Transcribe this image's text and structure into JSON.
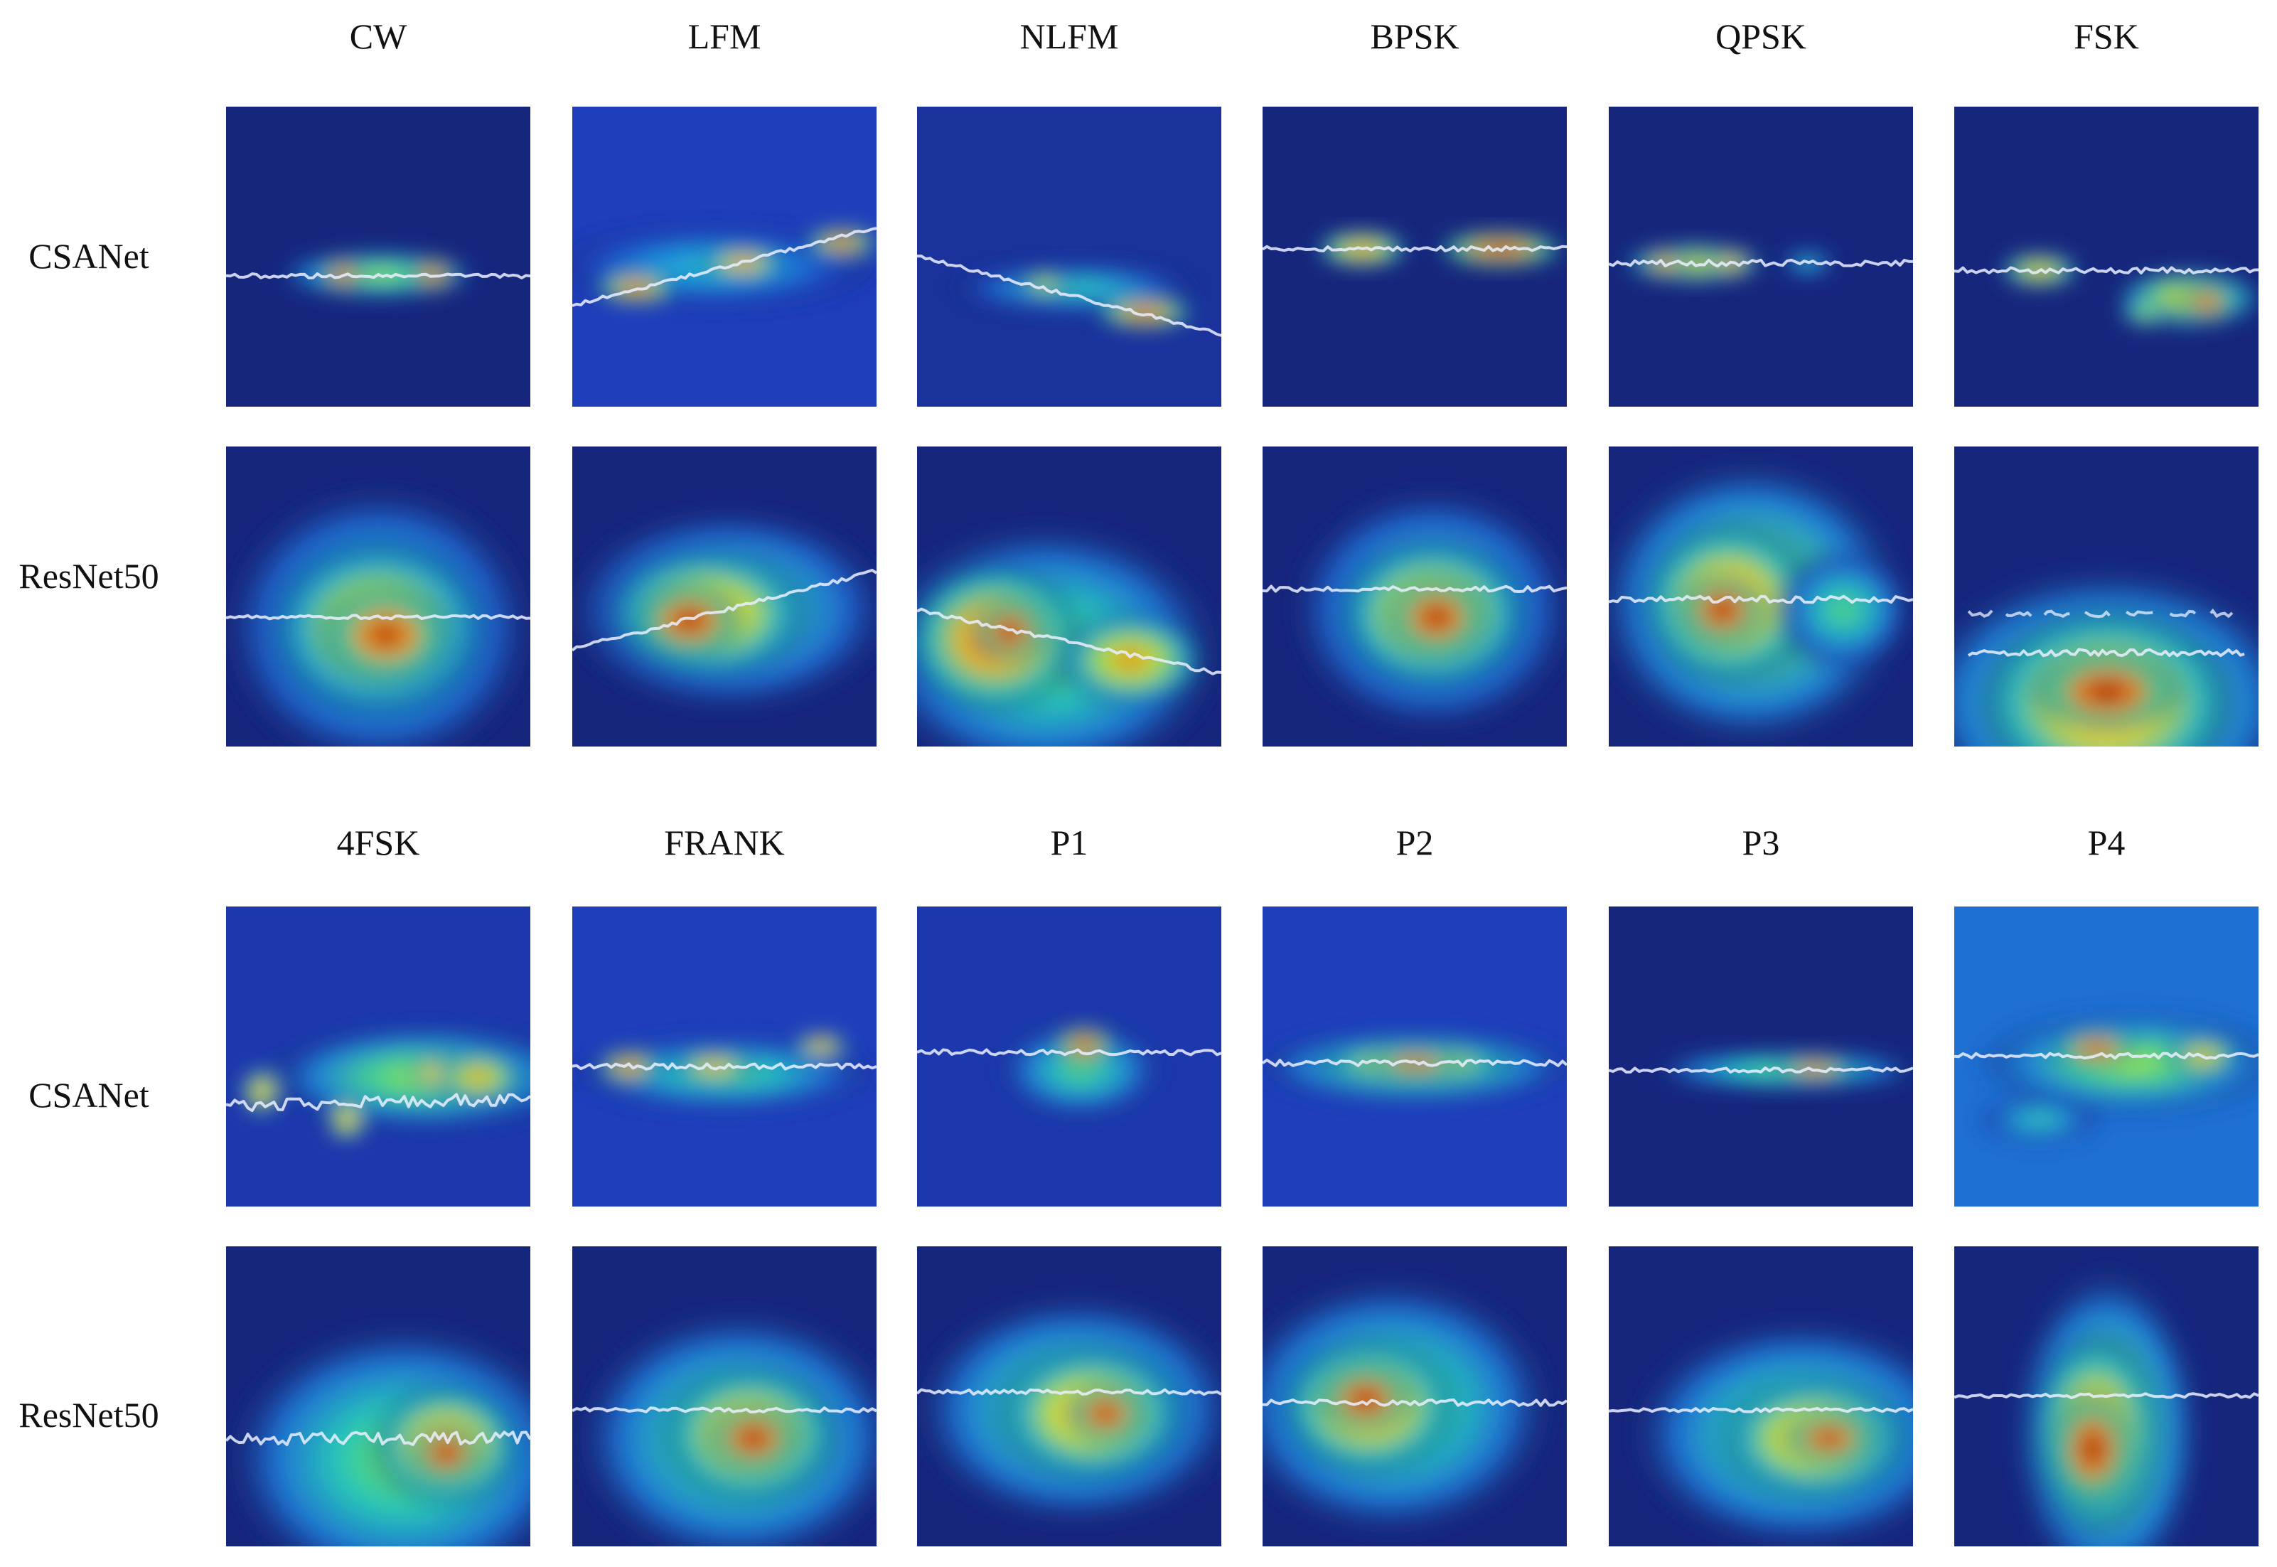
{
  "figure": {
    "groups": [
      {
        "columns": [
          "CW",
          "LFM",
          "NLFM",
          "BPSK",
          "QPSK",
          "FSK"
        ],
        "rows": [
          "CSANet",
          "ResNet50"
        ]
      },
      {
        "columns": [
          "4FSK",
          "FRANK",
          "P1",
          "P2",
          "P3",
          "P4"
        ],
        "rows": [
          "CSANet",
          "ResNet50"
        ]
      }
    ],
    "colormap": [
      "#131a5e",
      "#1f3fbf",
      "#1e90e0",
      "#28c8b8",
      "#7be04a",
      "#f2e62a",
      "#f07a14",
      "#c8140c",
      "#7a0008"
    ]
  }
}
